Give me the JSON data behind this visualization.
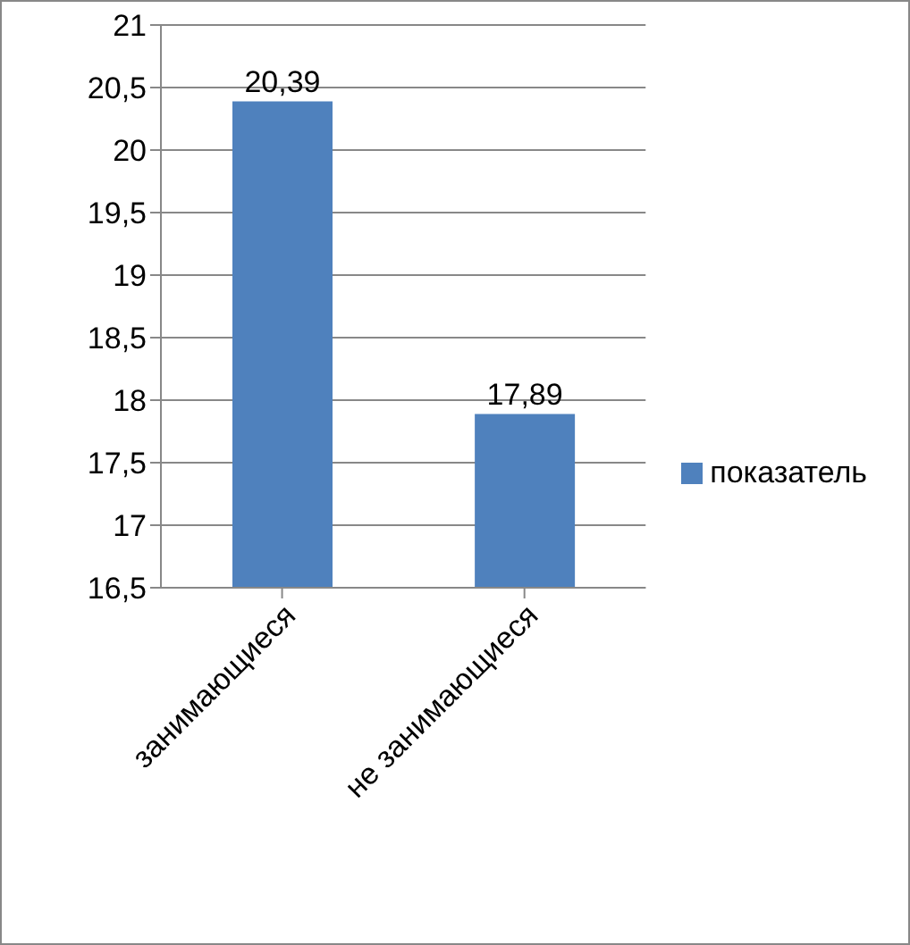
{
  "chart_data": {
    "type": "bar",
    "categories": [
      "занимающиеся",
      "не занимающиеся"
    ],
    "series": [
      {
        "name": "показатель",
        "color": "#4f81bd",
        "values": [
          20.39,
          17.89
        ],
        "value_labels": [
          "20,39",
          "17,89"
        ]
      }
    ],
    "ylim": [
      16.5,
      21
    ],
    "yticks": [
      {
        "value": 16.5,
        "label": "16,5"
      },
      {
        "value": 17,
        "label": "17"
      },
      {
        "value": 17.5,
        "label": "17,5"
      },
      {
        "value": 18,
        "label": "18"
      },
      {
        "value": 18.5,
        "label": "18,5"
      },
      {
        "value": 19,
        "label": "19"
      },
      {
        "value": 19.5,
        "label": "19,5"
      },
      {
        "value": 20,
        "label": "20"
      },
      {
        "value": 20.5,
        "label": "20,5"
      },
      {
        "value": 21,
        "label": "21"
      }
    ],
    "grid": "y",
    "legend": "right"
  }
}
